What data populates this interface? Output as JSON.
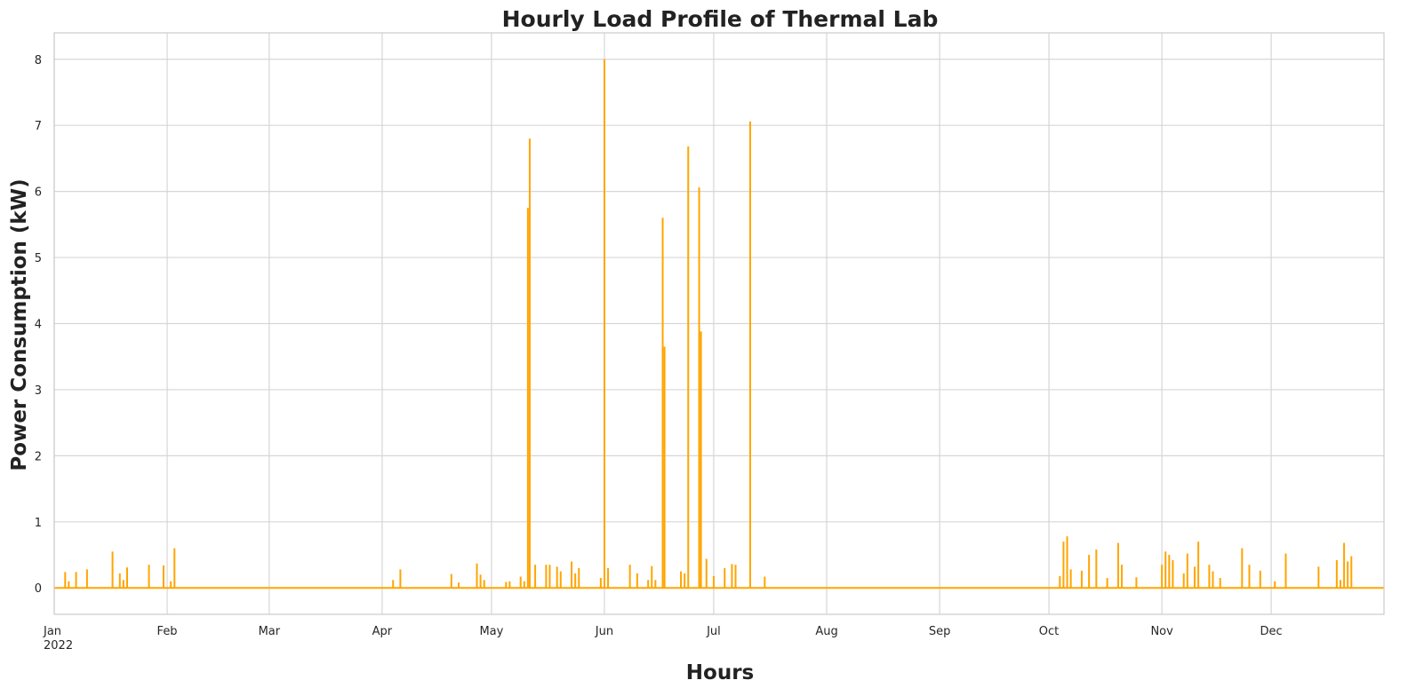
{
  "chart_data": {
    "type": "line",
    "title": "Hourly Load Profile of Thermal Lab",
    "xlabel": "Hours",
    "ylabel": "Power Consumption (kW)",
    "xlim": [
      "2022-01-01",
      "2022-12-31T23:00"
    ],
    "ylim": [
      -0.4,
      8.4
    ],
    "yticks": [
      0,
      1,
      2,
      3,
      4,
      5,
      6,
      7,
      8
    ],
    "xticks": [
      {
        "date": "2022-01-01",
        "label": "Jan",
        "sublabel": "2022"
      },
      {
        "date": "2022-02-01",
        "label": "Feb"
      },
      {
        "date": "2022-03-01",
        "label": "Mar"
      },
      {
        "date": "2022-04-01",
        "label": "Apr"
      },
      {
        "date": "2022-05-01",
        "label": "May"
      },
      {
        "date": "2022-06-01",
        "label": "Jun"
      },
      {
        "date": "2022-07-01",
        "label": "Jul"
      },
      {
        "date": "2022-08-01",
        "label": "Aug"
      },
      {
        "date": "2022-09-01",
        "label": "Sep"
      },
      {
        "date": "2022-10-01",
        "label": "Oct"
      },
      {
        "date": "2022-11-01",
        "label": "Nov"
      },
      {
        "date": "2022-12-01",
        "label": "Dec"
      }
    ],
    "grid": true,
    "line_color": "#FFA500",
    "baseline": 0,
    "series": [
      {
        "spikes": [
          [
            "2022-01-04",
            0.24
          ],
          [
            "2022-01-05",
            0.1
          ],
          [
            "2022-01-07",
            0.24
          ],
          [
            "2022-01-10",
            0.28
          ],
          [
            "2022-01-17",
            0.55
          ],
          [
            "2022-01-19",
            0.22
          ],
          [
            "2022-01-20",
            0.12
          ],
          [
            "2022-01-21",
            0.31
          ],
          [
            "2022-01-27",
            0.35
          ],
          [
            "2022-01-31",
            0.34
          ],
          [
            "2022-02-02",
            0.1
          ],
          [
            "2022-02-03",
            0.6
          ],
          [
            "2022-04-04",
            0.12
          ],
          [
            "2022-04-06",
            0.28
          ],
          [
            "2022-04-20",
            0.21
          ],
          [
            "2022-04-22",
            0.08
          ],
          [
            "2022-04-27",
            0.37
          ],
          [
            "2022-04-28",
            0.2
          ],
          [
            "2022-04-29",
            0.12
          ],
          [
            "2022-05-05",
            0.09
          ],
          [
            "2022-05-06",
            0.1
          ],
          [
            "2022-05-09",
            0.17
          ],
          [
            "2022-05-10",
            0.1
          ],
          [
            "2022-05-11",
            5.75
          ],
          [
            "2022-05-11T12:00",
            6.8
          ],
          [
            "2022-05-13",
            0.35
          ],
          [
            "2022-05-16",
            0.35
          ],
          [
            "2022-05-17",
            0.35
          ],
          [
            "2022-05-19",
            0.32
          ],
          [
            "2022-05-20",
            0.25
          ],
          [
            "2022-05-23",
            0.4
          ],
          [
            "2022-05-24",
            0.22
          ],
          [
            "2022-05-25",
            0.3
          ],
          [
            "2022-05-31",
            0.15
          ],
          [
            "2022-06-01",
            8.0
          ],
          [
            "2022-06-02",
            0.3
          ],
          [
            "2022-06-08",
            0.35
          ],
          [
            "2022-06-10",
            0.22
          ],
          [
            "2022-06-13",
            0.12
          ],
          [
            "2022-06-14",
            0.33
          ],
          [
            "2022-06-15",
            0.12
          ],
          [
            "2022-06-17",
            5.6
          ],
          [
            "2022-06-17T12:00",
            3.65
          ],
          [
            "2022-06-22",
            0.25
          ],
          [
            "2022-06-23",
            0.22
          ],
          [
            "2022-06-24",
            6.68
          ],
          [
            "2022-06-27",
            6.06
          ],
          [
            "2022-06-27T12:00",
            3.88
          ],
          [
            "2022-06-29",
            0.44
          ],
          [
            "2022-07-01",
            0.18
          ],
          [
            "2022-07-04",
            0.3
          ],
          [
            "2022-07-06",
            0.36
          ],
          [
            "2022-07-07",
            0.35
          ],
          [
            "2022-07-11",
            7.06
          ],
          [
            "2022-07-15",
            0.17
          ],
          [
            "2022-10-04",
            0.18
          ],
          [
            "2022-10-05",
            0.7
          ],
          [
            "2022-10-06",
            0.78
          ],
          [
            "2022-10-07",
            0.28
          ],
          [
            "2022-10-10",
            0.26
          ],
          [
            "2022-10-12",
            0.5
          ],
          [
            "2022-10-14",
            0.58
          ],
          [
            "2022-10-17",
            0.15
          ],
          [
            "2022-10-20",
            0.68
          ],
          [
            "2022-10-21",
            0.35
          ],
          [
            "2022-10-25",
            0.16
          ],
          [
            "2022-11-01",
            0.35
          ],
          [
            "2022-11-02",
            0.55
          ],
          [
            "2022-11-03",
            0.5
          ],
          [
            "2022-11-04",
            0.42
          ],
          [
            "2022-11-07",
            0.22
          ],
          [
            "2022-11-08",
            0.52
          ],
          [
            "2022-11-10",
            0.32
          ],
          [
            "2022-11-11",
            0.7
          ],
          [
            "2022-11-14",
            0.35
          ],
          [
            "2022-11-15",
            0.25
          ],
          [
            "2022-11-17",
            0.15
          ],
          [
            "2022-11-23",
            0.6
          ],
          [
            "2022-11-25",
            0.35
          ],
          [
            "2022-11-28",
            0.26
          ],
          [
            "2022-12-02",
            0.1
          ],
          [
            "2022-12-05",
            0.52
          ],
          [
            "2022-12-14",
            0.32
          ],
          [
            "2022-12-19",
            0.42
          ],
          [
            "2022-12-20",
            0.12
          ],
          [
            "2022-12-21",
            0.68
          ],
          [
            "2022-12-22",
            0.4
          ],
          [
            "2022-12-23",
            0.48
          ]
        ]
      }
    ]
  }
}
